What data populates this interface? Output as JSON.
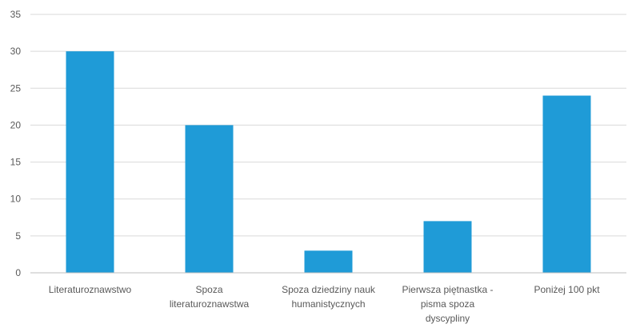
{
  "chart_data": {
    "type": "bar",
    "categories": [
      "Literaturoznawstwo",
      "Spoza literaturoznawstwa",
      "Spoza dziedziny nauk humanistycznych",
      "Pierwsza piętnastka - pisma spoza dyscypliny",
      "Poniżej 100 pkt"
    ],
    "category_lines": [
      [
        "Literaturoznawstwo"
      ],
      [
        "Spoza",
        "literaturoznawstwa"
      ],
      [
        "Spoza dziedziny nauk",
        "humanistycznych"
      ],
      [
        "Pierwsza piętnastka -",
        "pisma spoza",
        "dyscypliny"
      ],
      [
        "Poniżej 100 pkt"
      ]
    ],
    "values": [
      30,
      20,
      3,
      7,
      24
    ],
    "ylim": [
      0,
      35
    ],
    "yticks": [
      0,
      5,
      10,
      15,
      20,
      25,
      30,
      35
    ],
    "grid": true,
    "bar_color": "#1f9bd7"
  }
}
